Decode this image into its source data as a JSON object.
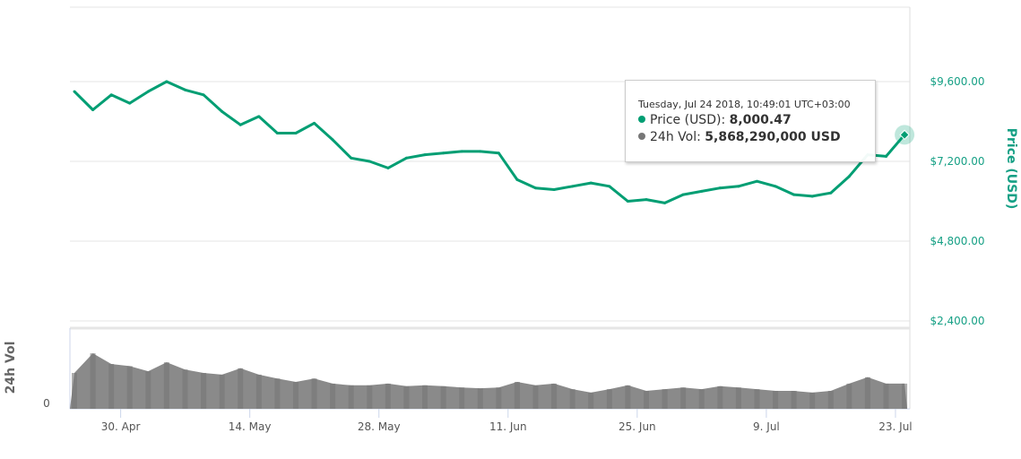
{
  "chart_data": {
    "type": "line",
    "start_date": "2018-04-25",
    "step_days": 2,
    "price_series": {
      "name": "Price (USD)",
      "color": "#009e73",
      "values": [
        9300,
        8750,
        9200,
        8950,
        9300,
        9600,
        9350,
        9200,
        8700,
        8300,
        8550,
        8050,
        8050,
        8350,
        7850,
        7300,
        7200,
        7000,
        7300,
        7400,
        7450,
        7500,
        7500,
        7450,
        6650,
        6400,
        6350,
        6450,
        6550,
        6450,
        6000,
        6050,
        5950,
        6200,
        6300,
        6400,
        6450,
        6600,
        6450,
        6200,
        6150,
        6250,
        6750,
        7400,
        7350,
        8000
      ]
    },
    "volume_series": {
      "name": "24h Vol",
      "unit": "billion USD",
      "color": "#777777",
      "values": [
        8.4,
        13,
        10.5,
        10,
        8.8,
        10.9,
        9.2,
        8.4,
        8,
        9.5,
        8,
        7.1,
        6.3,
        7.1,
        5.9,
        5.5,
        5.5,
        5.9,
        5.3,
        5.5,
        5.3,
        5,
        4.8,
        5,
        6.3,
        5.5,
        5.9,
        4.6,
        3.8,
        4.6,
        5.5,
        4.2,
        4.6,
        5,
        4.6,
        5.3,
        5,
        4.6,
        4.2,
        4.2,
        3.8,
        4.2,
        5.9,
        7.4,
        5.9,
        5.9
      ]
    },
    "x_ticks": [
      "30. Apr",
      "14. May",
      "28. May",
      "11. Jun",
      "25. Jun",
      "9. Jul",
      "23. Jul"
    ],
    "y_ticks": [
      "$2,400.00",
      "$4,800.00",
      "$7,200.00",
      "$9,600.00"
    ],
    "y_tick_values": [
      2400,
      4800,
      7200,
      9600
    ],
    "ylabel": "Price (USD)",
    "vol_label": "24h Vol",
    "vol_zero_label": "0",
    "ylim": [
      0,
      12000
    ],
    "grid": true
  },
  "tooltip": {
    "date": "Tuesday, Jul 24 2018, 10:49:01 UTC+03:00",
    "price_label": "Price (USD):",
    "price_value": "8,000.47",
    "vol_label": "24h Vol:",
    "vol_value": "5,868,290,000 USD",
    "price_dot_color": "#009e73",
    "vol_dot_color": "#777777"
  }
}
